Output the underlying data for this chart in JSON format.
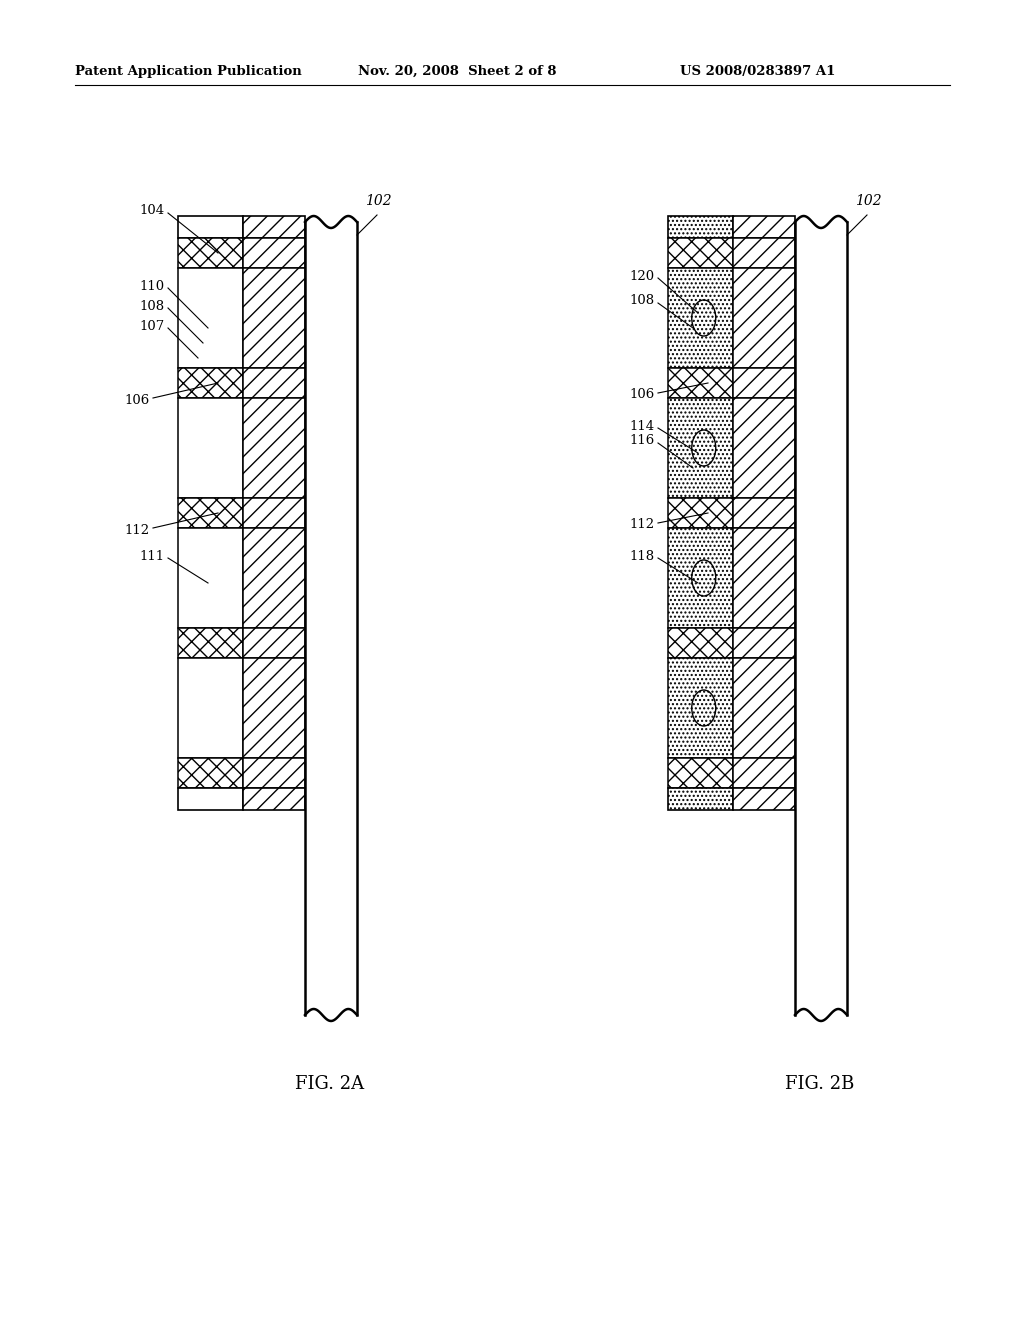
{
  "bg_color": "#ffffff",
  "header_left": "Patent Application Publication",
  "header_mid": "Nov. 20, 2008  Sheet 2 of 8",
  "header_right": "US 2008/0283897 A1",
  "fig2a_label": "FIG. 2A",
  "fig2b_label": "FIG. 2B",
  "label_102a": "102",
  "label_102b": "102",
  "label_104": "104",
  "label_106": "106",
  "label_107": "107",
  "label_108a": "108",
  "label_110": "110",
  "label_111": "111",
  "label_112a": "112",
  "label_108b": "108",
  "label_112b": "112",
  "label_114": "114",
  "label_116": "116",
  "label_118": "118",
  "label_120": "120",
  "label_106b": "106"
}
